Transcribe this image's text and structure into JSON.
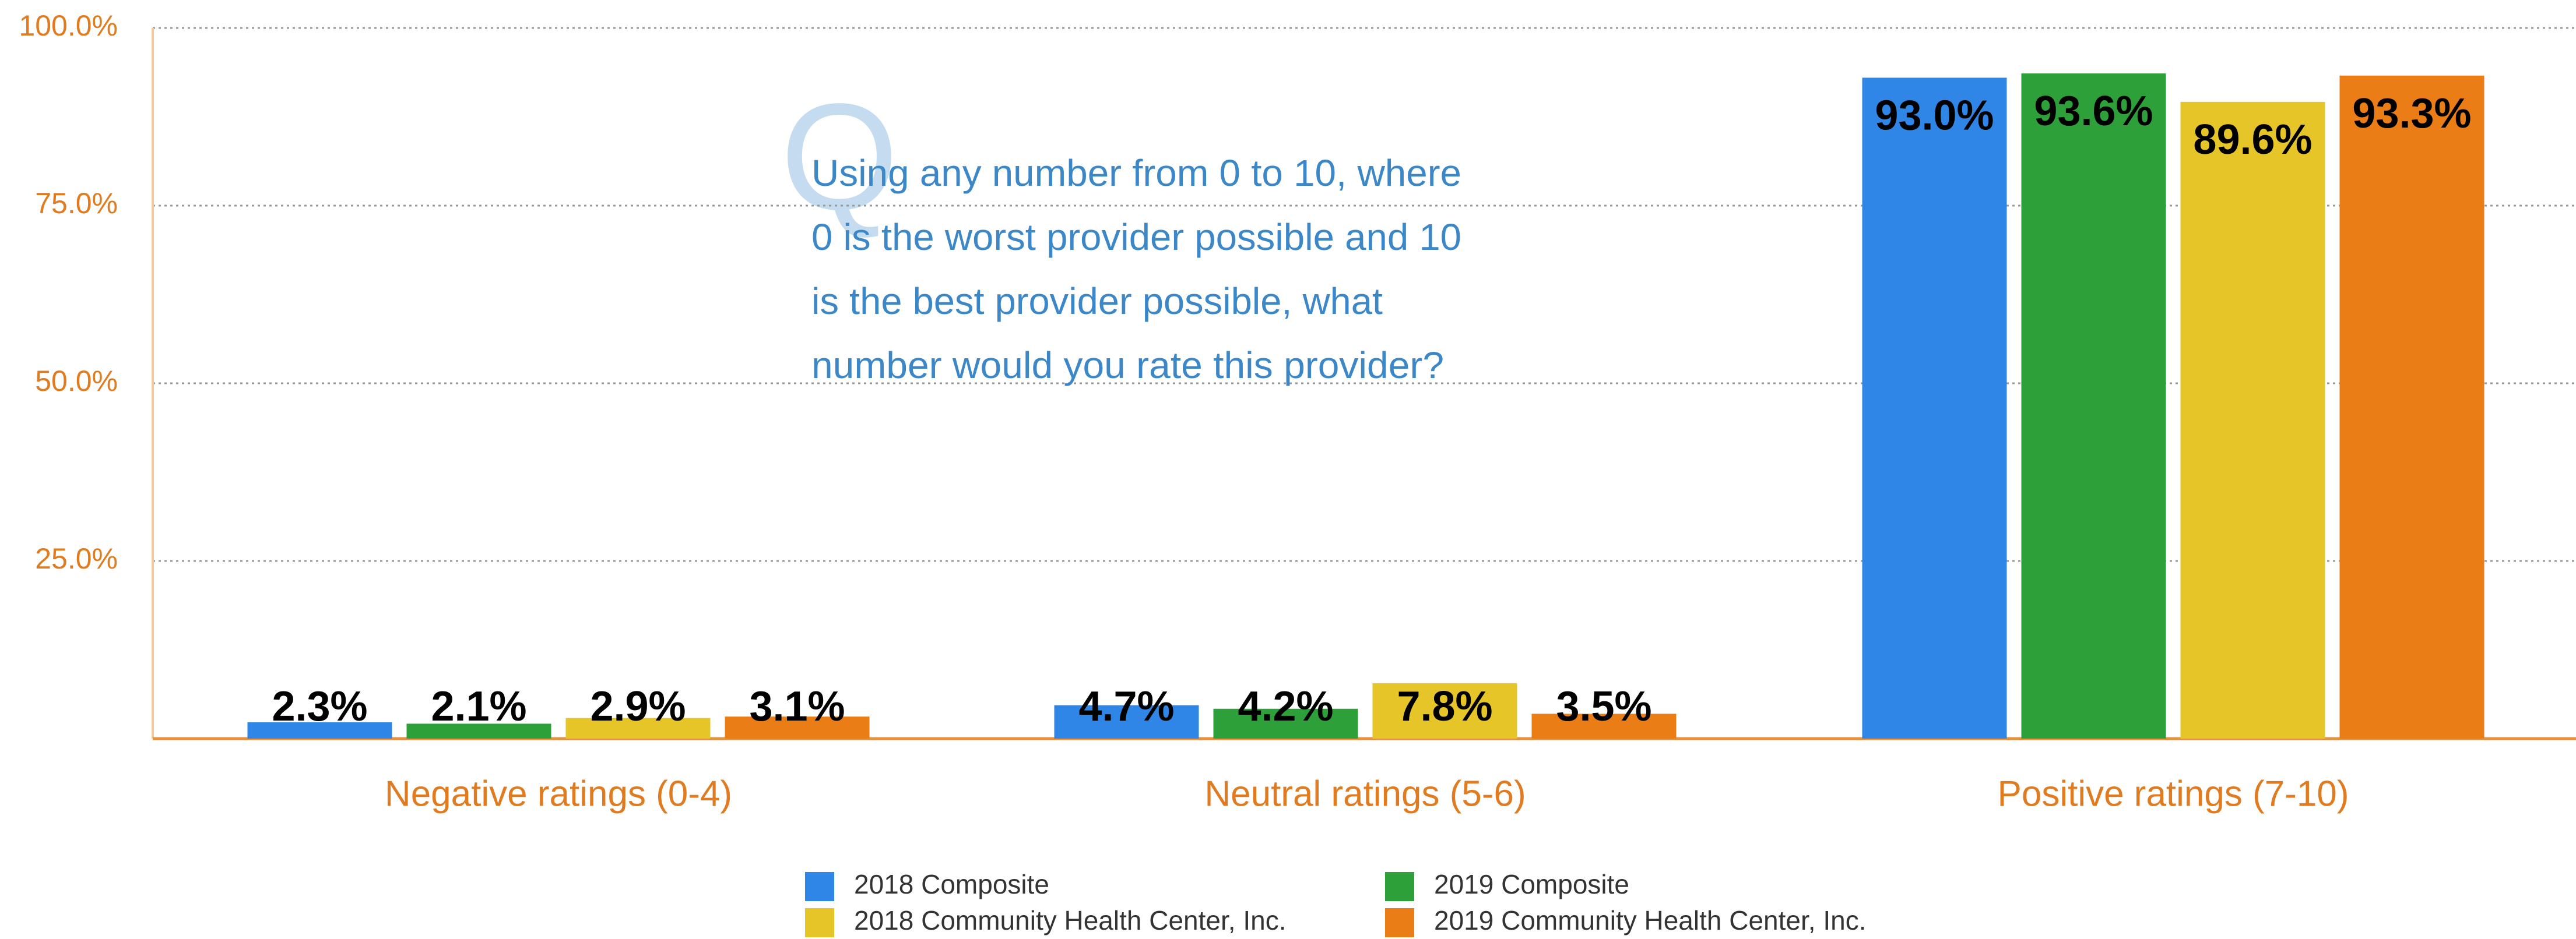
{
  "chart_data": {
    "type": "bar",
    "categories": [
      "Negative ratings (0-4)",
      "Neutral ratings (5-6)",
      "Positive ratings (7-10)"
    ],
    "series": [
      {
        "name": "2018 Composite",
        "color": "#2f86e6",
        "values": [
          2.3,
          4.7,
          93.0
        ],
        "value_labels": [
          "2.3%",
          "4.7%",
          "93.0%"
        ]
      },
      {
        "name": "2019 Composite",
        "color": "#2ea03a",
        "values": [
          2.1,
          4.2,
          93.6
        ],
        "value_labels": [
          "2.1%",
          "4.2%",
          "93.6%"
        ]
      },
      {
        "name": "2018 Community Health Center, Inc.",
        "color": "#e6c528",
        "values": [
          2.9,
          7.8,
          89.6
        ],
        "value_labels": [
          "2.9%",
          "7.8%",
          "89.6%"
        ]
      },
      {
        "name": "2019 Community Health Center, Inc.",
        "color": "#ea7d16",
        "values": [
          3.1,
          3.5,
          93.3
        ],
        "value_labels": [
          "3.1%",
          "3.5%",
          "93.3%"
        ]
      }
    ],
    "ylim": [
      0,
      100
    ],
    "yticks": [
      {
        "value": 25,
        "label": "25.0%"
      },
      {
        "value": 50,
        "label": "50.0%"
      },
      {
        "value": 75,
        "label": "75.0%"
      },
      {
        "value": 100,
        "label": "100.0%"
      }
    ],
    "grid": true,
    "annotation_icon": "Q",
    "annotation": [
      "Using any number from 0 to 10, where",
      "0 is the worst provider possible and 10",
      "is the best provider possible, what",
      "number would you rate this provider?"
    ],
    "legend": "bottom"
  }
}
